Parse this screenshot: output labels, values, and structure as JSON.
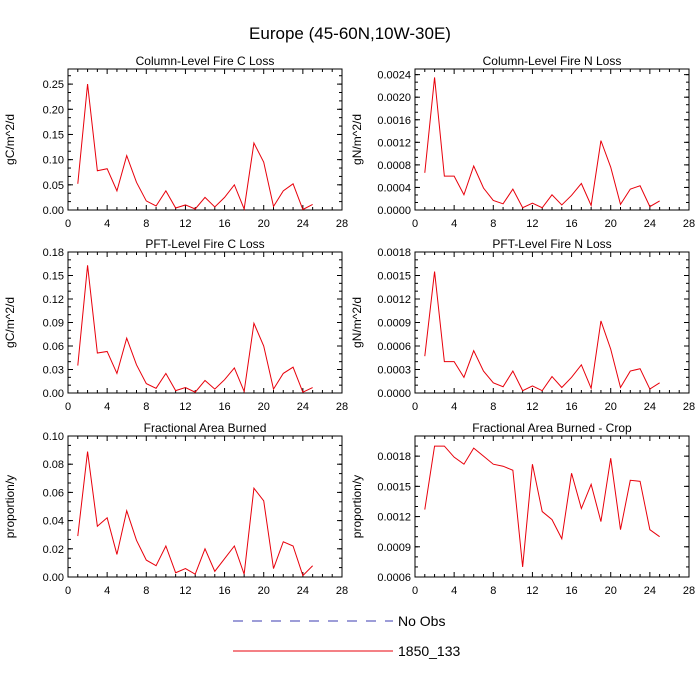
{
  "figure": {
    "title": "Europe (45-60N,10W-30E)",
    "legend": {
      "placement": "bottom-center",
      "items": [
        {
          "label": "No Obs",
          "color": "#3b3bb0",
          "style": "dashed"
        },
        {
          "label": "1850_133",
          "color": "#e8000b",
          "style": "solid"
        }
      ]
    }
  },
  "chart_data": [
    {
      "type": "line",
      "title": "Column-Level Fire C Loss",
      "ylabel": "gC/m^2/d",
      "xlim": [
        0,
        28
      ],
      "ylim": [
        0,
        0.28
      ],
      "xticks": [
        0,
        4,
        8,
        12,
        16,
        20,
        24,
        28
      ],
      "yticks": [
        0.0,
        0.05,
        0.1,
        0.15,
        0.2,
        0.25
      ],
      "yticklabels": [
        "0.00",
        "0.05",
        "0.10",
        "0.15",
        "0.20",
        "0.25"
      ],
      "x": [
        1,
        2,
        3,
        4,
        5,
        6,
        7,
        8,
        9,
        10,
        11,
        12,
        13,
        14,
        15,
        16,
        17,
        18,
        19,
        20,
        21,
        22,
        23,
        24,
        25
      ],
      "series": [
        {
          "name": "1850_133",
          "color": "#e8000b",
          "values": [
            0.052,
            0.25,
            0.078,
            0.082,
            0.038,
            0.108,
            0.055,
            0.018,
            0.008,
            0.038,
            0.004,
            0.01,
            0.002,
            0.025,
            0.006,
            0.025,
            0.05,
            0.002,
            0.133,
            0.095,
            0.007,
            0.038,
            0.052,
            0.001,
            0.011
          ]
        }
      ]
    },
    {
      "type": "line",
      "title": "Column-Level Fire N Loss",
      "ylabel": "gN/m^2/d",
      "xlim": [
        0,
        28
      ],
      "ylim": [
        0,
        0.0025
      ],
      "xticks": [
        0,
        4,
        8,
        12,
        16,
        20,
        24,
        28
      ],
      "yticks": [
        0.0,
        0.0004,
        0.0008,
        0.0012,
        0.0016,
        0.002,
        0.0024
      ],
      "yticklabels": [
        "0.0000",
        "0.0004",
        "0.0008",
        "0.0012",
        "0.0016",
        "0.0020",
        "0.0024"
      ],
      "x": [
        1,
        2,
        3,
        4,
        5,
        6,
        7,
        8,
        9,
        10,
        11,
        12,
        13,
        14,
        15,
        16,
        17,
        18,
        19,
        20,
        21,
        22,
        23,
        24,
        25
      ],
      "series": [
        {
          "name": "1850_133",
          "color": "#e8000b",
          "values": [
            0.00066,
            0.00235,
            0.0006,
            0.0006,
            0.00027,
            0.00078,
            0.00039,
            0.00017,
            0.00011,
            0.00037,
            4e-05,
            0.00012,
            4e-05,
            0.00027,
            9e-05,
            0.00026,
            0.00047,
            8e-05,
            0.00123,
            0.00076,
            0.0001,
            0.00037,
            0.00043,
            6e-05,
            0.00016
          ]
        }
      ]
    },
    {
      "type": "line",
      "title": "PFT-Level Fire C Loss",
      "ylabel": "gC/m^2/d",
      "xlim": [
        0,
        28
      ],
      "ylim": [
        0,
        0.18
      ],
      "xticks": [
        0,
        4,
        8,
        12,
        16,
        20,
        24,
        28
      ],
      "yticks": [
        0.0,
        0.03,
        0.06,
        0.09,
        0.12,
        0.15,
        0.18
      ],
      "yticklabels": [
        "0.00",
        "0.03",
        "0.06",
        "0.09",
        "0.12",
        "0.15",
        "0.18"
      ],
      "x": [
        1,
        2,
        3,
        4,
        5,
        6,
        7,
        8,
        9,
        10,
        11,
        12,
        13,
        14,
        15,
        16,
        17,
        18,
        19,
        20,
        21,
        22,
        23,
        24,
        25
      ],
      "series": [
        {
          "name": "1850_133",
          "color": "#e8000b",
          "values": [
            0.035,
            0.163,
            0.051,
            0.053,
            0.025,
            0.07,
            0.036,
            0.012,
            0.006,
            0.025,
            0.003,
            0.007,
            0.001,
            0.016,
            0.005,
            0.017,
            0.032,
            0.002,
            0.089,
            0.06,
            0.005,
            0.025,
            0.033,
            0.001,
            0.007
          ]
        }
      ]
    },
    {
      "type": "line",
      "title": "PFT-Level Fire N Loss",
      "ylabel": "gN/m^2/d",
      "xlim": [
        0,
        28
      ],
      "ylim": [
        0,
        0.0018
      ],
      "xticks": [
        0,
        4,
        8,
        12,
        16,
        20,
        24,
        28
      ],
      "yticks": [
        0.0,
        0.0003,
        0.0006,
        0.0009,
        0.0012,
        0.0015,
        0.0018
      ],
      "yticklabels": [
        "0.0000",
        "0.0003",
        "0.0006",
        "0.0009",
        "0.0012",
        "0.0015",
        "0.0018"
      ],
      "x": [
        1,
        2,
        3,
        4,
        5,
        6,
        7,
        8,
        9,
        10,
        11,
        12,
        13,
        14,
        15,
        16,
        17,
        18,
        19,
        20,
        21,
        22,
        23,
        24,
        25
      ],
      "series": [
        {
          "name": "1850_133",
          "color": "#e8000b",
          "values": [
            0.00047,
            0.00155,
            0.0004,
            0.0004,
            0.0002,
            0.00054,
            0.00028,
            0.00013,
            8e-05,
            0.00028,
            3e-05,
            9e-05,
            3e-05,
            0.00021,
            7e-05,
            0.0002,
            0.00036,
            6e-05,
            0.00092,
            0.00056,
            7e-05,
            0.00028,
            0.00031,
            5e-05,
            0.00013
          ]
        }
      ]
    },
    {
      "type": "line",
      "title": "Fractional Area Burned",
      "ylabel": "proportion/y",
      "xlim": [
        0,
        28
      ],
      "ylim": [
        0,
        0.1
      ],
      "xticks": [
        0,
        4,
        8,
        12,
        16,
        20,
        24,
        28
      ],
      "yticks": [
        0.0,
        0.02,
        0.04,
        0.06,
        0.08,
        0.1
      ],
      "yticklabels": [
        "0.00",
        "0.02",
        "0.04",
        "0.06",
        "0.08",
        "0.10"
      ],
      "x": [
        1,
        2,
        3,
        4,
        5,
        6,
        7,
        8,
        9,
        10,
        11,
        12,
        13,
        14,
        15,
        16,
        17,
        18,
        19,
        20,
        21,
        22,
        23,
        24,
        25
      ],
      "series": [
        {
          "name": "1850_133",
          "color": "#e8000b",
          "values": [
            0.029,
            0.089,
            0.036,
            0.042,
            0.016,
            0.047,
            0.026,
            0.012,
            0.008,
            0.022,
            0.003,
            0.006,
            0.002,
            0.02,
            0.004,
            0.013,
            0.022,
            0.002,
            0.063,
            0.054,
            0.006,
            0.025,
            0.022,
            0.001,
            0.008
          ]
        }
      ]
    },
    {
      "type": "line",
      "title": "Fractional Area Burned - Crop",
      "ylabel": "proportion/y",
      "xlim": [
        0,
        28
      ],
      "ylim": [
        0.0006,
        0.002
      ],
      "xticks": [
        0,
        4,
        8,
        12,
        16,
        20,
        24,
        28
      ],
      "yticks": [
        0.0006,
        0.0009,
        0.0012,
        0.0015,
        0.0018
      ],
      "yticklabels": [
        "0.0006",
        "0.0009",
        "0.0012",
        "0.0015",
        "0.0018"
      ],
      "x": [
        1,
        2,
        3,
        4,
        5,
        6,
        7,
        8,
        9,
        10,
        11,
        12,
        13,
        14,
        15,
        16,
        17,
        18,
        19,
        20,
        21,
        22,
        23,
        24,
        25
      ],
      "series": [
        {
          "name": "1850_133",
          "color": "#e8000b",
          "values": [
            0.00127,
            0.0019,
            0.0019,
            0.00179,
            0.00172,
            0.00188,
            0.0018,
            0.00172,
            0.0017,
            0.00166,
            0.0007,
            0.00172,
            0.00125,
            0.00117,
            0.00098,
            0.00163,
            0.00128,
            0.00152,
            0.00115,
            0.00178,
            0.00107,
            0.00156,
            0.00155,
            0.00107,
            0.001
          ]
        }
      ]
    }
  ]
}
